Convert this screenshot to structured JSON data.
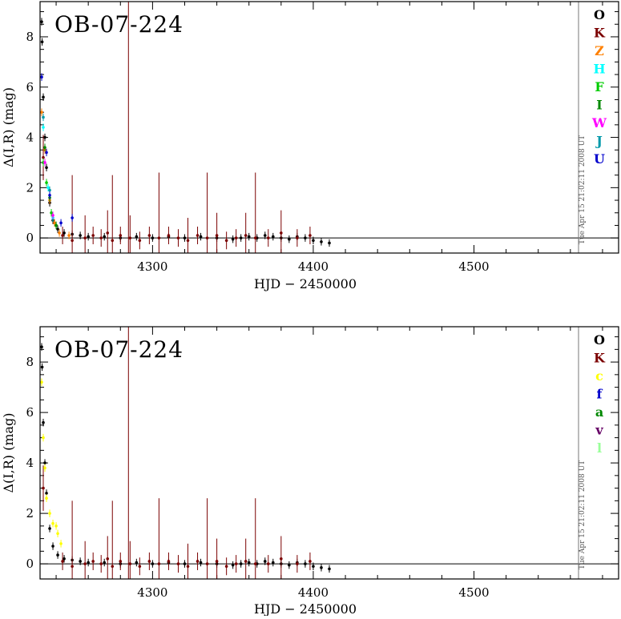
{
  "chart_data": [
    {
      "type": "scatter",
      "title": "OB-07-224",
      "xlabel": "HJD − 2450000",
      "ylabel": "Δ(I,R) (mag)",
      "xlim": [
        4230,
        4590
      ],
      "ylim": [
        -0.6,
        9.4
      ],
      "xticks": [
        4300,
        4400,
        4500
      ],
      "yticks": [
        0,
        2,
        4,
        6,
        8
      ],
      "timestamp": "Tue Apr 15 21:02:11 2008 UT",
      "legend_position": "right",
      "series": [
        {
          "name": "O",
          "color": "#000000",
          "points": [
            [
              4231,
              8.6
            ],
            [
              4231.3,
              7.8
            ],
            [
              4232,
              5.6
            ],
            [
              4233,
              4.0
            ],
            [
              4234,
              2.8
            ],
            [
              4236,
              1.4
            ],
            [
              4238,
              0.7
            ],
            [
              4241,
              0.35
            ],
            [
              4245,
              0.2
            ],
            [
              4250,
              0.15
            ],
            [
              4255,
              0.1
            ],
            [
              4260,
              0.05
            ],
            [
              4270,
              0.05
            ],
            [
              4280,
              0.0
            ],
            [
              4290,
              0.05
            ],
            [
              4300,
              0.0
            ],
            [
              4310,
              0.05
            ],
            [
              4320,
              0.0
            ],
            [
              4330,
              0.05
            ],
            [
              4340,
              0.0
            ],
            [
              4350,
              -0.05
            ],
            [
              4355,
              0.0
            ],
            [
              4360,
              0.05
            ],
            [
              4365,
              0.0
            ],
            [
              4370,
              0.1
            ],
            [
              4375,
              0.05
            ],
            [
              4380,
              0.0
            ],
            [
              4385,
              -0.05
            ],
            [
              4390,
              0.05
            ],
            [
              4395,
              0.0
            ],
            [
              4400,
              -0.1
            ],
            [
              4405,
              -0.15
            ],
            [
              4410,
              -0.2
            ]
          ]
        },
        {
          "name": "K",
          "color": "#7b0000",
          "points": [
            [
              4232,
              3.2
            ],
            [
              4244,
              0.1
            ],
            [
              4250,
              -0.1
            ],
            [
              4258,
              0.0
            ],
            [
              4263,
              0.1
            ],
            [
              4268,
              0.0
            ],
            [
              4272,
              0.2
            ],
            [
              4275,
              -0.1
            ],
            [
              4280,
              0.1
            ],
            [
              4286,
              0.0
            ],
            [
              4292,
              -0.1
            ],
            [
              4298,
              0.1
            ],
            [
              4304,
              0.0
            ],
            [
              4310,
              0.1
            ],
            [
              4316,
              0.0
            ],
            [
              4322,
              -0.1
            ],
            [
              4328,
              0.1
            ],
            [
              4334,
              0.0
            ],
            [
              4340,
              0.1
            ],
            [
              4346,
              -0.1
            ],
            [
              4352,
              0.0
            ],
            [
              4358,
              0.1
            ],
            [
              4364,
              0.0
            ],
            [
              4372,
              0.0
            ],
            [
              4380,
              0.2
            ],
            [
              4390,
              0.0
            ],
            [
              4398,
              0.1
            ]
          ]
        },
        {
          "name": "Z",
          "color": "#ff8000",
          "points": [
            [
              4231,
              5.0
            ],
            [
              4233,
              3.5
            ],
            [
              4236,
              1.5
            ],
            [
              4239,
              0.6
            ],
            [
              4242,
              0.2
            ],
            [
              4248,
              0.1
            ]
          ]
        },
        {
          "name": "H",
          "color": "#00ffff",
          "points": [
            [
              4232,
              4.4
            ],
            [
              4235,
              2.0
            ],
            [
              4238,
              0.8
            ]
          ]
        },
        {
          "name": "F",
          "color": "#00cc00",
          "points": [
            [
              4232,
              3.0
            ],
            [
              4234,
              2.2
            ],
            [
              4237,
              1.0
            ],
            [
              4240,
              0.5
            ]
          ]
        },
        {
          "name": "I",
          "color": "#008800",
          "points": [
            [
              4233,
              3.6
            ],
            [
              4236,
              1.6
            ],
            [
              4240,
              0.5
            ]
          ]
        },
        {
          "name": "W",
          "color": "#ff00ff",
          "points": [
            [
              4233,
              3.0
            ],
            [
              4238,
              0.9
            ]
          ]
        },
        {
          "name": "J",
          "color": "#0099aa",
          "points": [
            [
              4232,
              4.8
            ],
            [
              4236,
              1.9
            ]
          ]
        },
        {
          "name": "U",
          "color": "#0000cc",
          "points": [
            [
              4231,
              6.4
            ],
            [
              4234,
              3.4
            ],
            [
              4236,
              1.7
            ],
            [
              4243,
              0.6
            ],
            [
              4250,
              0.8
            ]
          ]
        }
      ]
    },
    {
      "type": "scatter",
      "title": "OB-07-224",
      "xlabel": "HJD − 2450000",
      "ylabel": "Δ(I,R) (mag)",
      "xlim": [
        4230,
        4590
      ],
      "ylim": [
        -0.6,
        9.4
      ],
      "xticks": [
        4300,
        4400,
        4500
      ],
      "yticks": [
        0,
        2,
        4,
        6,
        8
      ],
      "timestamp": "Tue Apr 15 21:02:11 2008 UT",
      "legend_position": "right",
      "series": [
        {
          "name": "O",
          "color": "#000000",
          "points": [
            [
              4231,
              8.6
            ],
            [
              4231.3,
              7.8
            ],
            [
              4232,
              5.6
            ],
            [
              4233,
              4.0
            ],
            [
              4234,
              2.8
            ],
            [
              4236,
              1.4
            ],
            [
              4238,
              0.7
            ],
            [
              4241,
              0.35
            ],
            [
              4245,
              0.2
            ],
            [
              4250,
              0.15
            ],
            [
              4255,
              0.1
            ],
            [
              4260,
              0.05
            ],
            [
              4270,
              0.05
            ],
            [
              4280,
              0.0
            ],
            [
              4290,
              0.05
            ],
            [
              4300,
              0.0
            ],
            [
              4310,
              0.05
            ],
            [
              4320,
              0.0
            ],
            [
              4330,
              0.05
            ],
            [
              4340,
              0.0
            ],
            [
              4350,
              -0.05
            ],
            [
              4355,
              0.0
            ],
            [
              4360,
              0.05
            ],
            [
              4365,
              0.0
            ],
            [
              4370,
              0.1
            ],
            [
              4375,
              0.05
            ],
            [
              4380,
              0.0
            ],
            [
              4385,
              -0.05
            ],
            [
              4390,
              0.05
            ],
            [
              4395,
              0.0
            ],
            [
              4400,
              -0.1
            ],
            [
              4405,
              -0.15
            ],
            [
              4410,
              -0.2
            ]
          ]
        },
        {
          "name": "K",
          "color": "#7b0000",
          "points": [
            [
              4232,
              3.0
            ],
            [
              4244,
              0.1
            ],
            [
              4250,
              -0.1
            ],
            [
              4258,
              0.0
            ],
            [
              4263,
              0.1
            ],
            [
              4268,
              0.0
            ],
            [
              4272,
              0.2
            ],
            [
              4275,
              -0.1
            ],
            [
              4280,
              0.1
            ],
            [
              4286,
              0.0
            ],
            [
              4292,
              -0.1
            ],
            [
              4298,
              0.1
            ],
            [
              4304,
              0.0
            ],
            [
              4310,
              0.1
            ],
            [
              4316,
              0.0
            ],
            [
              4322,
              -0.1
            ],
            [
              4328,
              0.1
            ],
            [
              4334,
              0.0
            ],
            [
              4340,
              0.1
            ],
            [
              4346,
              -0.1
            ],
            [
              4352,
              0.0
            ],
            [
              4358,
              0.1
            ],
            [
              4364,
              0.0
            ],
            [
              4372,
              0.0
            ],
            [
              4380,
              0.2
            ],
            [
              4390,
              0.0
            ],
            [
              4398,
              0.1
            ]
          ]
        },
        {
          "name": "c",
          "color": "#ffff00",
          "points": [
            [
              4231,
              7.2
            ],
            [
              4232,
              5.0
            ],
            [
              4233,
              3.8
            ],
            [
              4234,
              2.6
            ],
            [
              4236,
              2.0
            ],
            [
              4238,
              1.6
            ],
            [
              4240,
              1.5
            ],
            [
              4241,
              1.2
            ],
            [
              4243,
              0.8
            ]
          ]
        },
        {
          "name": "f",
          "color": "#0000cc",
          "points": []
        },
        {
          "name": "a",
          "color": "#008800",
          "points": []
        },
        {
          "name": "v",
          "color": "#660066",
          "points": []
        },
        {
          "name": "l",
          "color": "#99ff99",
          "points": []
        }
      ]
    }
  ]
}
